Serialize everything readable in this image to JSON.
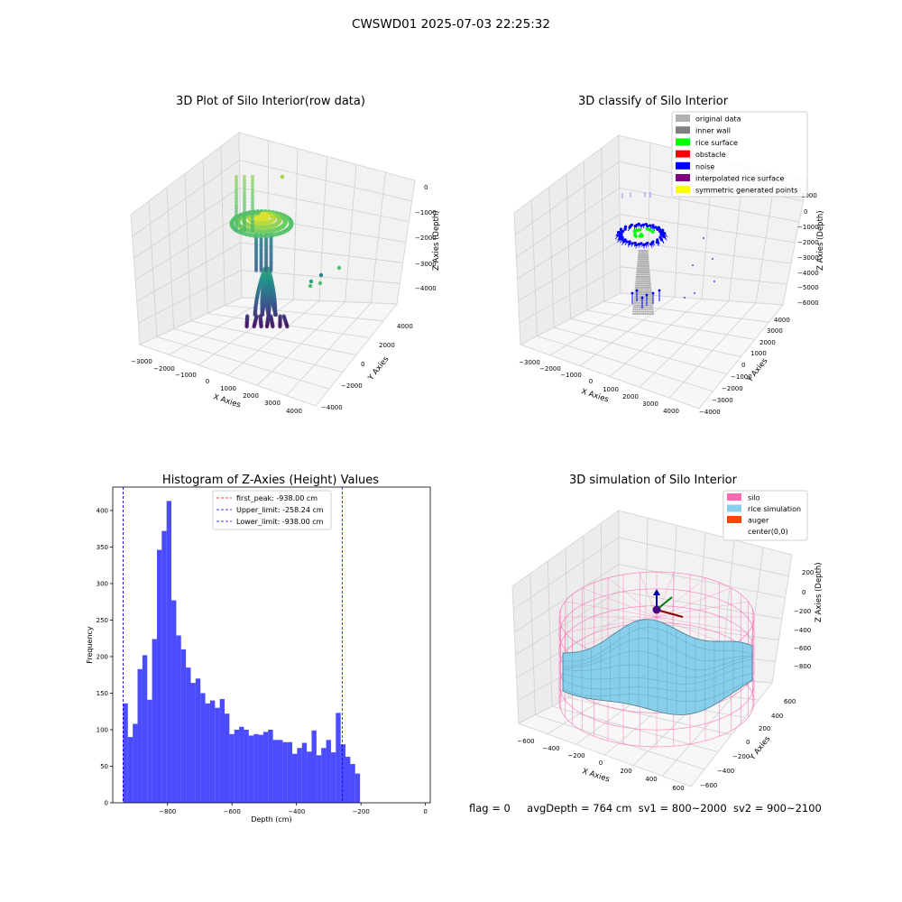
{
  "figure": {
    "suptitle": "CWSWD01 2025-07-03 22:25:32",
    "status": {
      "flag": "flag = 0",
      "avg_depth": "avgDepth = 764 cm",
      "sv1": "sv1 = 800~2000",
      "sv2": "sv2 = 900~2100"
    }
  },
  "chart_data": [
    {
      "type": "scatter",
      "projection": "3d",
      "title": "3D Plot of Silo Interior(row data)",
      "xlabel": "X Axies",
      "ylabel": "Y Axies",
      "zlabel": "Z Axies (Depth)",
      "x_ticks": [
        "−3000",
        "−2000",
        "−1000",
        "0",
        "1000",
        "2000",
        "3000",
        "4000"
      ],
      "y_ticks": [
        "−4000",
        "−2000",
        "0",
        "2000",
        "4000"
      ],
      "z_ticks": [
        "0",
        "−1000",
        "−2000",
        "−3000",
        "−4000"
      ],
      "colormap": "viridis",
      "grid": true
    },
    {
      "type": "scatter",
      "projection": "3d",
      "title": "3D classify of Silo Interior",
      "xlabel": "X Axies",
      "ylabel": "Y Axies",
      "zlabel": "Z Axies (Depth)",
      "x_ticks": [
        "−3000",
        "−2000",
        "−1000",
        "0",
        "1000",
        "2000",
        "3000",
        "4000"
      ],
      "y_ticks": [
        "−4000",
        "−3000",
        "−2000",
        "−1000",
        "0",
        "1000",
        "2000",
        "3000",
        "4000"
      ],
      "z_ticks": [
        "1000",
        "0",
        "−1000",
        "−2000",
        "−3000",
        "−4000",
        "−5000",
        "−6000"
      ],
      "legend_position": "top-right",
      "legend": [
        {
          "label": "original data",
          "color": "#b0b0b0"
        },
        {
          "label": "inner wall",
          "color": "#808080"
        },
        {
          "label": "rice surface",
          "color": "#00ff00"
        },
        {
          "label": "obstacle",
          "color": "#ff0000"
        },
        {
          "label": "noise",
          "color": "#0000ff"
        },
        {
          "label": "interpolated rice surface",
          "color": "#800080"
        },
        {
          "label": "symmetric generated points",
          "color": "#ffff00"
        }
      ],
      "grid": true
    },
    {
      "type": "bar",
      "title": "Histogram of Z-Axies (Height) Values",
      "xlabel": "Depth (cm)",
      "ylabel": "Frequency",
      "xlim": [
        -970,
        15
      ],
      "ylim": [
        0,
        432
      ],
      "x_ticks": [
        -800,
        -600,
        -400,
        -200,
        0
      ],
      "x_tick_labels": [
        "−800",
        "−600",
        "−400",
        "−200",
        "0"
      ],
      "y_ticks": [
        0,
        50,
        100,
        150,
        200,
        250,
        300,
        350,
        400
      ],
      "y_tick_labels": [
        "0",
        "50",
        "100",
        "150",
        "200",
        "250",
        "300",
        "350",
        "400"
      ],
      "bins": {
        "start": -938,
        "width": 15,
        "counts": [
          136,
          90,
          108,
          183,
          202,
          141,
          224,
          346,
          372,
          413,
          277,
          229,
          210,
          185,
          164,
          170,
          150,
          136,
          140,
          130,
          142,
          122,
          94,
          100,
          104,
          100,
          92,
          94,
          93,
          97,
          100,
          86,
          86,
          83,
          83,
          67,
          75,
          82,
          70,
          99,
          65,
          75,
          86,
          69,
          123,
          80,
          63,
          53,
          40
        ]
      },
      "bar_color": "#0000ff",
      "bar_opacity": 0.7,
      "lines": [
        {
          "x": -938.0,
          "color": "#ff0000",
          "label": "first_peak: -938.00 cm"
        },
        {
          "x": -258.24,
          "color": "#0000ff",
          "label": "Upper_limit: -258.24 cm"
        },
        {
          "x": -938.0,
          "color": "#0000ff",
          "label": "Lower_limit: -938.00 cm"
        }
      ],
      "legend_position": "top-center"
    },
    {
      "type": "surface",
      "projection": "3d",
      "title": "3D simulation of Silo Interior",
      "xlabel": "X Axies",
      "ylabel": "Y Axies",
      "zlabel": "Z Axies (Depth)",
      "x_ticks": [
        "−600",
        "−400",
        "−200",
        "0",
        "200",
        "400",
        "600"
      ],
      "y_ticks": [
        "−600",
        "−400",
        "−200",
        "0",
        "200",
        "400",
        "600"
      ],
      "z_ticks": [
        "200",
        "0",
        "−200",
        "−400",
        "−600",
        "−800"
      ],
      "legend_position": "top-right",
      "legend": [
        {
          "label": "silo",
          "color": "#ff69b4"
        },
        {
          "label": "rice simulation",
          "color": "#87ceeb"
        },
        {
          "label": "auger",
          "color": "#ff4500"
        },
        {
          "label": "center(0,0)",
          "color": ""
        }
      ],
      "grid": true
    }
  ]
}
